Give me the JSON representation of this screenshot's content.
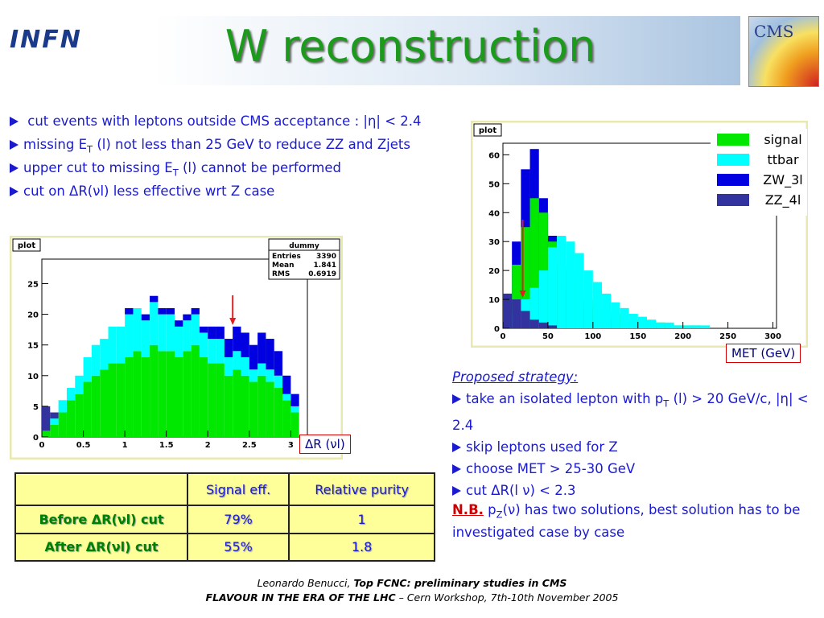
{
  "header": {
    "title": "W reconstruction",
    "logo_left": "INFN",
    "logo_right": "CMS"
  },
  "bullets": [
    [
      " cut events with leptons outside CMS acceptance : |η| < 2.4"
    ],
    [
      "missing E",
      {
        "sub": "T"
      },
      " (l) not less than 25 GeV to reduce ZZ and Zjets"
    ],
    [
      "upper cut to missing E",
      {
        "sub": "T"
      },
      " (l) cannot be performed"
    ],
    [
      "cut on ΔR(νl) less effective wrt Z case"
    ]
  ],
  "chart_data": [
    {
      "type": "histogram",
      "stacked": true,
      "label": "plot",
      "xlabel": "ΔR (νl)",
      "stats": {
        "title": "dummy",
        "rows": [
          [
            "Entries",
            3390
          ],
          [
            "Mean",
            1.841
          ],
          [
            "RMS",
            0.6919
          ]
        ]
      },
      "bins": [
        0,
        0.1,
        0.2,
        0.3,
        0.4,
        0.5,
        0.6,
        0.7,
        0.8,
        0.9,
        1,
        1.1,
        1.2,
        1.3,
        1.4,
        1.5,
        1.6,
        1.7,
        1.8,
        1.9,
        2,
        2.1,
        2.2,
        2.3,
        2.4,
        2.5,
        2.6,
        2.7,
        2.8,
        2.9,
        3,
        3.1,
        3.2
      ],
      "series": [
        {
          "color": "#00e800",
          "values": [
            1,
            2,
            4,
            6,
            7,
            9,
            10,
            11,
            12,
            12,
            13,
            14,
            13,
            15,
            14,
            14,
            13,
            14,
            15,
            13,
            12,
            12,
            10,
            11,
            10,
            9,
            10,
            9,
            8,
            6,
            4,
            0
          ]
        },
        {
          "color": "#00ffff",
          "values": [
            0,
            1,
            2,
            2,
            3,
            4,
            5,
            5,
            6,
            6,
            7,
            7,
            6,
            7,
            6,
            6,
            5,
            5,
            5,
            4,
            4,
            4,
            3,
            3,
            3,
            2,
            2,
            2,
            2,
            1,
            1,
            0
          ]
        },
        {
          "color": "#0000e0",
          "values": [
            0,
            0,
            0,
            0,
            0,
            0,
            0,
            0,
            0,
            0,
            1,
            0,
            1,
            1,
            1,
            1,
            1,
            1,
            1,
            1,
            2,
            2,
            3,
            4,
            4,
            4,
            5,
            5,
            4,
            3,
            2,
            0
          ]
        },
        {
          "color": "#3333a0",
          "values": [
            4,
            1,
            0,
            0,
            0,
            0,
            0,
            0,
            0,
            0,
            0,
            0,
            0,
            0,
            0,
            0,
            0,
            0,
            0,
            0,
            0,
            0,
            0,
            0,
            0,
            0,
            0,
            0,
            0,
            0,
            0,
            0
          ]
        }
      ],
      "xlim": [
        0,
        3.2
      ],
      "ylim": [
        0,
        29
      ],
      "xticks": [
        0,
        0.5,
        1,
        1.5,
        2,
        2.5,
        3
      ],
      "yticks": [
        0,
        5,
        10,
        15,
        20,
        25
      ]
    },
    {
      "type": "histogram",
      "stacked": false,
      "label": "plot",
      "xlabel": "MET (GeV)",
      "legend": "upper right",
      "bins": [
        0,
        10,
        20,
        30,
        40,
        50,
        60,
        70,
        80,
        90,
        100,
        110,
        120,
        130,
        140,
        150,
        160,
        170,
        180,
        190,
        200,
        210,
        220,
        230,
        240,
        250,
        260,
        270,
        280,
        290,
        300
      ],
      "series": [
        {
          "name": "signal",
          "color": "#00e800",
          "values": [
            8,
            22,
            35,
            45,
            40,
            30,
            22,
            18,
            14,
            10,
            8,
            6,
            5,
            4,
            3,
            3,
            2,
            2,
            1,
            1,
            1,
            1,
            0,
            0,
            0,
            0,
            0,
            0,
            0,
            0
          ]
        },
        {
          "name": "ttbar",
          "color": "#00ffff",
          "values": [
            2,
            5,
            10,
            14,
            20,
            28,
            32,
            30,
            26,
            20,
            16,
            12,
            9,
            7,
            5,
            4,
            3,
            2,
            2,
            1,
            1,
            1,
            1,
            0,
            0,
            0,
            0,
            0,
            0,
            0
          ]
        },
        {
          "name": "ZW_3l",
          "color": "#0000e0",
          "values": [
            10,
            30,
            55,
            62,
            45,
            32,
            20,
            14,
            10,
            7,
            5,
            4,
            3,
            2,
            2,
            1,
            1,
            1,
            0,
            0,
            0,
            0,
            0,
            0,
            0,
            0,
            0,
            0,
            0,
            0
          ]
        },
        {
          "name": "ZZ_4l",
          "color": "#3333a0",
          "values": [
            12,
            10,
            6,
            3,
            2,
            1,
            0,
            0,
            0,
            0,
            0,
            0,
            0,
            0,
            0,
            0,
            0,
            0,
            0,
            0,
            0,
            0,
            0,
            0,
            0,
            0,
            0,
            0,
            0,
            0
          ]
        }
      ],
      "xlim": [
        0,
        304
      ],
      "ylim": [
        0,
        64
      ],
      "xticks": [
        0,
        50,
        100,
        150,
        200,
        250,
        300
      ],
      "yticks": [
        0,
        10,
        20,
        30,
        40,
        50,
        60
      ]
    }
  ],
  "strategy": {
    "heading": "Proposed strategy:",
    "items": [
      [
        "take an isolated lepton with p",
        {
          "sub": "T"
        },
        " (l) > 20 GeV/c, |η| < 2.4"
      ],
      [
        "skip leptons used for Z"
      ],
      [
        "choose MET > 25-30 GeV"
      ],
      [
        "cut ΔR(l ν) < 2.3"
      ]
    ],
    "note": [
      {
        "u": "N.B."
      },
      " p",
      {
        "sub": "Z"
      },
      "(ν) has two solutions, best solution has to be investigated case by case"
    ]
  },
  "table": {
    "header": [
      "Signal eff.",
      "Relative purity"
    ],
    "rows": [
      [
        "Before ΔR(νl) cut",
        "79%",
        "1"
      ],
      [
        "After ΔR(νl) cut",
        "55%",
        "1.8"
      ]
    ]
  },
  "footer": {
    "line1": [
      {
        "i": "Leonardo Benucci, "
      },
      {
        "bi": "Top FCNC: preliminary studies in CMS"
      }
    ],
    "line2": [
      {
        "bi": "FLAVOUR IN THE ERA OF THE LHC"
      },
      {
        "i": " – Cern Workshop, 7th-10th November 2005"
      }
    ]
  }
}
